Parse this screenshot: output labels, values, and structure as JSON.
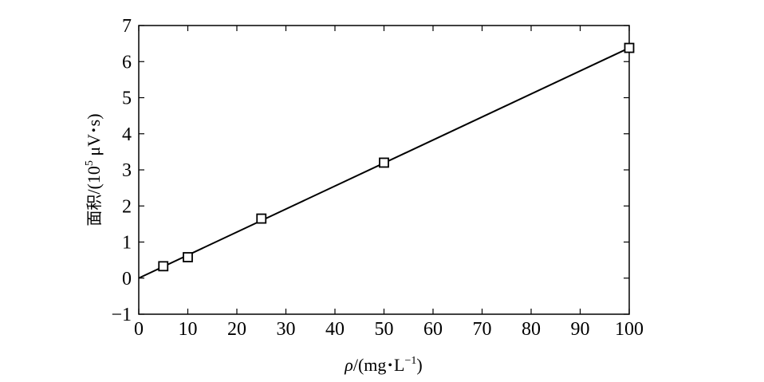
{
  "chart_data": {
    "type": "scatter",
    "title": "",
    "xlabel": {
      "symbol": "ρ",
      "unit_open": "/(mg",
      "dot": "•",
      "unit_L": "L",
      "unit_sup": "−1",
      "unit_close": ")"
    },
    "ylabel": {
      "chinese": "面积",
      "unit_open": "/(10",
      "unit_sup": "5",
      "unit_rest": " μV",
      "dot": "•",
      "unit_s": "s)"
    },
    "xlim": [
      0,
      100
    ],
    "ylim": [
      -1,
      7
    ],
    "x_ticks": [
      0,
      10,
      20,
      30,
      40,
      50,
      60,
      70,
      80,
      90,
      100
    ],
    "y_ticks": [
      -1,
      0,
      1,
      2,
      3,
      4,
      5,
      6,
      7
    ],
    "x_tick_labels": [
      "0",
      "10",
      "20",
      "30",
      "40",
      "50",
      "60",
      "70",
      "80",
      "90",
      "100"
    ],
    "y_tick_labels": [
      "−1",
      "0",
      "1",
      "2",
      "3",
      "4",
      "5",
      "6",
      "7"
    ],
    "grid": false,
    "legend": "none",
    "marker": "open-square",
    "points": [
      {
        "x": 5,
        "y": 0.33
      },
      {
        "x": 10,
        "y": 0.58
      },
      {
        "x": 25,
        "y": 1.65
      },
      {
        "x": 50,
        "y": 3.2
      },
      {
        "x": 100,
        "y": 6.38
      }
    ],
    "fit_line": {
      "type": "linear",
      "x": [
        0,
        100
      ],
      "y": [
        0.0,
        6.38
      ]
    }
  }
}
